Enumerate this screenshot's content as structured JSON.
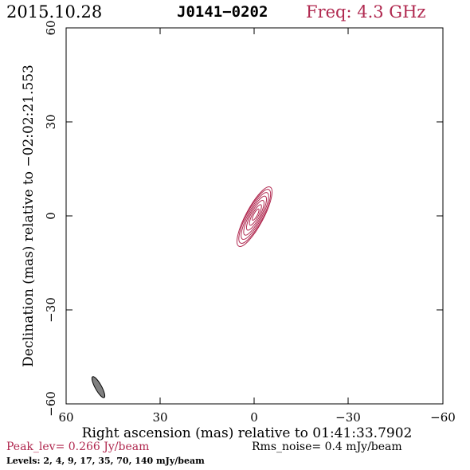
{
  "header": {
    "date": "2015.10.28",
    "source": "J0141−0202",
    "frequency": "Freq: 4.3 GHz"
  },
  "plot": {
    "x_axis_label": "Right ascension (mas) relative to 01:41:33.7902",
    "y_axis_label": "Declination (mas) relative to −02:02:21.553",
    "x_ticks": [
      "60",
      "30",
      "0",
      "−30",
      "−60"
    ],
    "y_ticks": [
      "60",
      "30",
      "0",
      "−30",
      "−60"
    ],
    "x_range_mas": [
      60,
      -60
    ],
    "y_range_mas": [
      -60,
      60
    ],
    "contour_color": "#b0284f",
    "beam_color": "#808080"
  },
  "footer": {
    "peak": "Peak_lev=  0.266 Jy/beam",
    "rms": "Rms_noise=  0.4 mJy/beam",
    "levels": "Levels:   2,   4,   9,   17,   35,   70,  140  mJy/beam"
  }
}
